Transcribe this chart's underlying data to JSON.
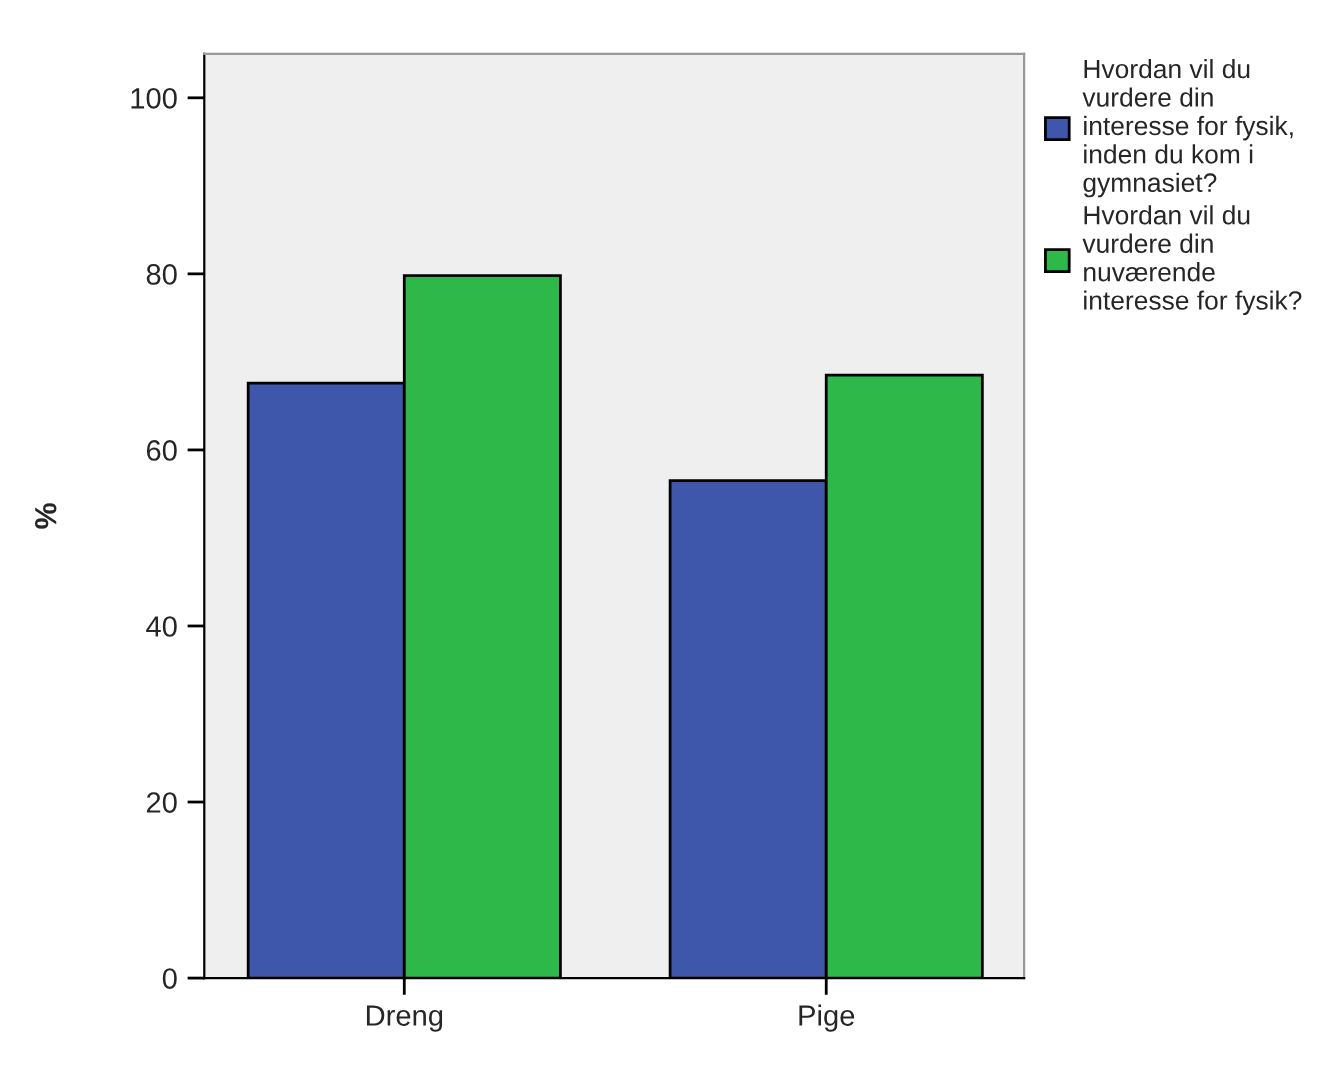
{
  "chart_data": {
    "type": "bar",
    "ylabel": "%",
    "categories": [
      "Dreng",
      "Pige"
    ],
    "series": [
      {
        "name": "Hvordan vil du vurdere din interesse for fysik, inden du kom i gymnasiet?",
        "color": "#3f57aa",
        "values": [
          67.6,
          56.5
        ]
      },
      {
        "name": "Hvordan vil du vurdere din nuværende interesse for fysik?",
        "color": "#2eb84a",
        "values": [
          79.8,
          68.5
        ]
      }
    ],
    "ylim": [
      0,
      105
    ],
    "yticks": [
      0,
      20,
      40,
      60,
      80,
      100
    ],
    "grid": false,
    "legend": "right"
  }
}
